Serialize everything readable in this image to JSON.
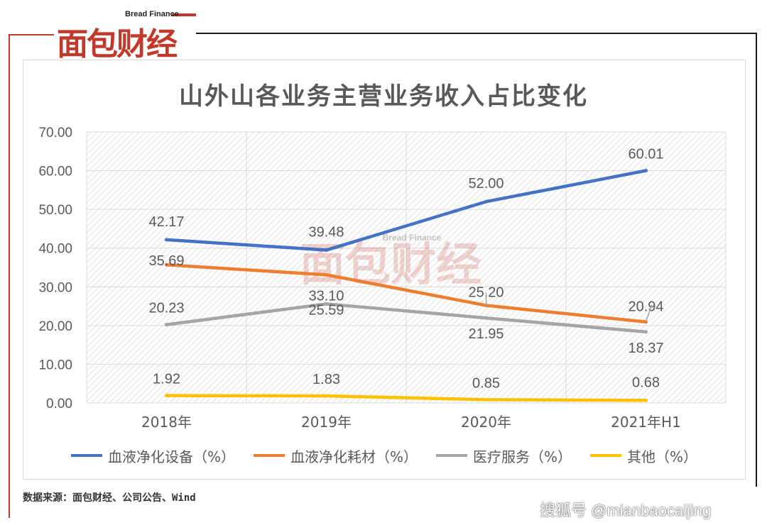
{
  "brand": {
    "name_cn": "面包财经",
    "name_en": "Bread Finance"
  },
  "chart_data": {
    "type": "line",
    "title": "山外山各业务主营业务收入占比变化",
    "categories": [
      "2018年",
      "2019年",
      "2020年",
      "2021年H1"
    ],
    "series": [
      {
        "name": "血液净化设备（%）",
        "color": "#4472c4",
        "values": [
          42.17,
          39.48,
          52.0,
          60.01
        ],
        "labels": [
          "42.17",
          "39.48",
          "52.00",
          "60.01"
        ]
      },
      {
        "name": "血液净化耗材（%）",
        "color": "#ed7d31",
        "values": [
          35.69,
          33.1,
          25.2,
          20.94
        ],
        "labels": [
          "35.69",
          "33.10",
          "25.20",
          "20.94"
        ]
      },
      {
        "name": "医疗服务（%）",
        "color": "#a5a5a5",
        "values": [
          20.23,
          25.59,
          21.95,
          18.37
        ],
        "labels": [
          "20.23",
          "25.59",
          "21.95",
          "18.37"
        ]
      },
      {
        "name": "其他（%）",
        "color": "#ffc000",
        "values": [
          1.92,
          1.83,
          0.85,
          0.68
        ],
        "labels": [
          "1.92",
          "1.83",
          "0.85",
          "0.68"
        ]
      }
    ],
    "ylim": [
      0,
      70
    ],
    "yticks": [
      "0.00",
      "10.00",
      "20.00",
      "30.00",
      "40.00",
      "50.00",
      "60.00",
      "70.00"
    ],
    "grid": true,
    "legend": "bottom"
  },
  "source": "数据来源：面包财经、公司公告、Wind",
  "watermark": "搜狐号 @mianbaocaijing"
}
